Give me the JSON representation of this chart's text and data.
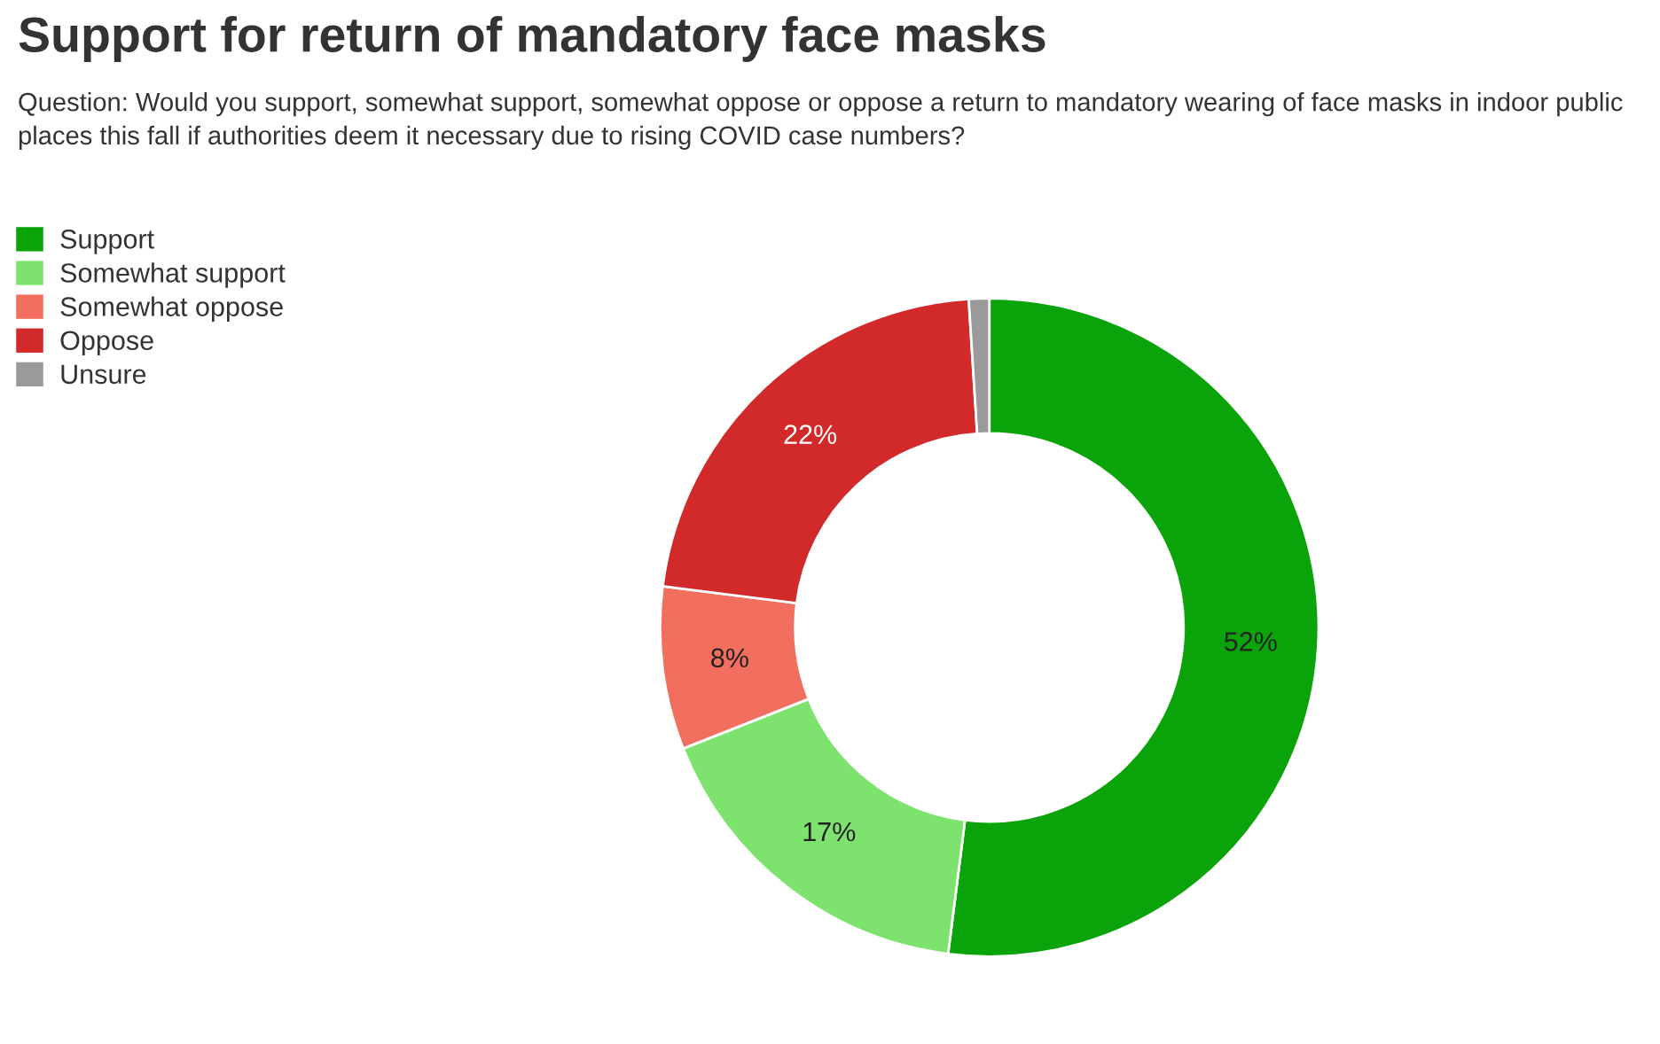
{
  "chart_data": {
    "type": "donut",
    "title": "Support for return of mandatory face masks",
    "subtitle": "Question: Would you support, somewhat support, somewhat oppose or oppose a return to mandatory wearing of face masks in indoor public places this fall if authorities deem it necessary due to rising COVID case numbers?",
    "categories": [
      "Support",
      "Somewhat support",
      "Somewhat oppose",
      "Oppose",
      "Unsure"
    ],
    "values": [
      52,
      17,
      8,
      22,
      1
    ],
    "colors": [
      "#0aa30a",
      "#7de36e",
      "#f26e5e",
      "#d22a2a",
      "#9a9a9a"
    ],
    "value_labels": [
      "52%",
      "17%",
      "8%",
      "22%",
      null
    ],
    "legend": "top left"
  }
}
